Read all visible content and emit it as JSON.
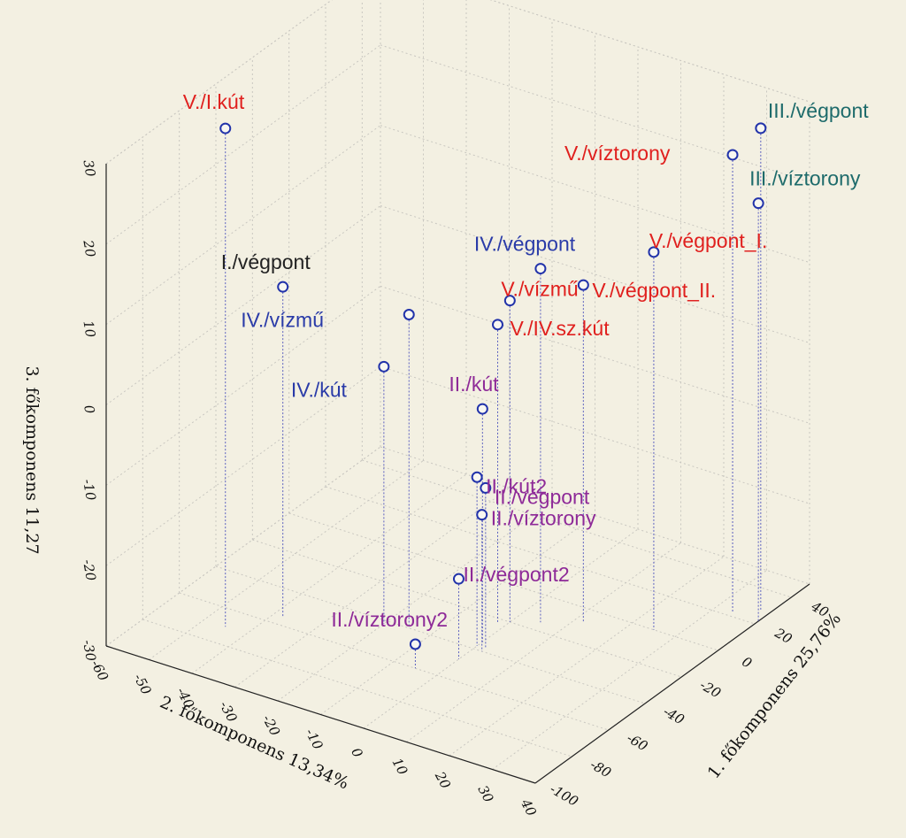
{
  "chart_data": {
    "type": "scatter3d",
    "title": "",
    "axes": {
      "x": {
        "label": "1. főkomponens 25,76%",
        "range": [
          -100,
          50
        ],
        "ticks": [
          "-100",
          "-80",
          "-60",
          "-40",
          "-20",
          "0",
          "20",
          "40"
        ]
      },
      "y": {
        "label": "2. főkomponens 13,34%",
        "range": [
          -60,
          40
        ],
        "ticks": [
          "-60",
          "-50",
          "-40",
          "-30",
          "-20",
          "-10",
          "0",
          "10",
          "20",
          "30",
          "40"
        ]
      },
      "z": {
        "label": "3. főkomponens 11,27",
        "range": [
          -30,
          30
        ],
        "ticks": [
          "30",
          "20",
          "10",
          "0",
          "-10",
          "-20",
          "-30"
        ]
      }
    },
    "grid": true,
    "points": [
      {
        "label": "V./I.kút",
        "color": "#e0201e",
        "x": -70,
        "y": -45,
        "z": 32
      },
      {
        "label": "III./végpont",
        "color": "#1e6b6b",
        "x": 28,
        "y": 38,
        "z": 30
      },
      {
        "label": "V./víztorony",
        "color": "#e0201e",
        "x": 22,
        "y": 34,
        "z": 27
      },
      {
        "label": "III./víztorony",
        "color": "#1e6b6b",
        "x": 22,
        "y": 40,
        "z": 22
      },
      {
        "label": "I./végpont",
        "color": "#222222",
        "x": -55,
        "y": -38,
        "z": 11
      },
      {
        "label": "IV./végpont",
        "color": "#2a3ba8",
        "x": -15,
        "y": 5,
        "z": 14
      },
      {
        "label": "V./végpont_I.",
        "color": "#e0201e",
        "x": 0,
        "y": 25,
        "z": 17
      },
      {
        "label": "V./vízmű",
        "color": "#e0201e",
        "x": -20,
        "y": 0,
        "z": 10
      },
      {
        "label": "V./végpont_II.",
        "color": "#e0201e",
        "x": -8,
        "y": 12,
        "z": 12
      },
      {
        "label": "IV./vízmű",
        "color": "#2a3ba8",
        "x": -40,
        "y": -15,
        "z": 9
      },
      {
        "label": "V./IV.sz.kút",
        "color": "#e0201e",
        "x": -22,
        "y": -2,
        "z": 7
      },
      {
        "label": "IV./kút",
        "color": "#2a3ba8",
        "x": -42,
        "y": -20,
        "z": 2
      },
      {
        "label": "II./kút",
        "color": "#8e2a98",
        "x": -35,
        "y": 0,
        "z": -1
      },
      {
        "label": "II./kút2",
        "color": "#8e2a98",
        "x": -38,
        "y": 0,
        "z": -9
      },
      {
        "label": "II./végpont",
        "color": "#8e2a98",
        "x": -38,
        "y": 2,
        "z": -10
      },
      {
        "label": "II./víztorony",
        "color": "#8e2a98",
        "x": -40,
        "y": 2,
        "z": -13
      },
      {
        "label": "II./végpont2",
        "color": "#8e2a98",
        "x": -48,
        "y": 0,
        "z": -20
      },
      {
        "label": "II./víztorony2",
        "color": "#8e2a98",
        "x": -60,
        "y": -5,
        "z": -27
      }
    ]
  }
}
